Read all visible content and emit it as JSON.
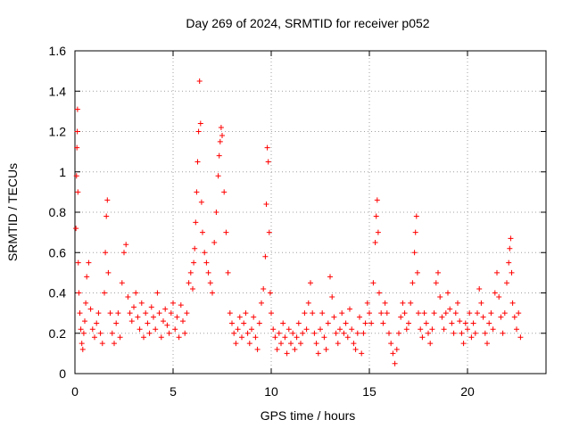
{
  "chart_data": {
    "type": "scatter",
    "title": "Day 269 of 2024, SRMTID for receiver p052",
    "xlabel": "GPS time / hours",
    "ylabel": "SRMTID / TECUs",
    "xlim": [
      0,
      24
    ],
    "ylim": [
      0,
      1.6
    ],
    "xticks": [
      0,
      5,
      10,
      15,
      20
    ],
    "xtick_labels": [
      "0",
      "5",
      "10",
      "15",
      "20"
    ],
    "yticks": [
      0,
      0.2,
      0.4,
      0.6,
      0.8,
      1.0,
      1.2,
      1.4,
      1.6
    ],
    "ytick_labels": [
      "0",
      "0.2",
      "0.4",
      "0.6",
      "0.8",
      "1",
      "1.2",
      "1.4",
      "1.6"
    ],
    "grid": true,
    "marker": "+",
    "color": "#ff0000",
    "series": [
      {
        "name": "SRMTID",
        "points": [
          [
            0.05,
            0.72
          ],
          [
            0.08,
            0.98
          ],
          [
            0.1,
            1.12
          ],
          [
            0.12,
            1.2
          ],
          [
            0.13,
            1.31
          ],
          [
            0.15,
            0.9
          ],
          [
            0.17,
            0.55
          ],
          [
            0.2,
            0.4
          ],
          [
            0.25,
            0.3
          ],
          [
            0.3,
            0.22
          ],
          [
            0.35,
            0.15
          ],
          [
            0.4,
            0.12
          ],
          [
            0.45,
            0.2
          ],
          [
            0.5,
            0.26
          ],
          [
            0.55,
            0.35
          ],
          [
            0.6,
            0.48
          ],
          [
            0.7,
            0.55
          ],
          [
            0.8,
            0.32
          ],
          [
            0.9,
            0.22
          ],
          [
            1.0,
            0.18
          ],
          [
            1.1,
            0.25
          ],
          [
            1.2,
            0.3
          ],
          [
            1.3,
            0.2
          ],
          [
            1.4,
            0.15
          ],
          [
            1.5,
            0.4
          ],
          [
            1.55,
            0.6
          ],
          [
            1.6,
            0.78
          ],
          [
            1.65,
            0.86
          ],
          [
            1.7,
            0.5
          ],
          [
            1.8,
            0.3
          ],
          [
            1.9,
            0.2
          ],
          [
            2.0,
            0.15
          ],
          [
            2.1,
            0.25
          ],
          [
            2.2,
            0.3
          ],
          [
            2.3,
            0.18
          ],
          [
            2.4,
            0.45
          ],
          [
            2.5,
            0.6
          ],
          [
            2.6,
            0.64
          ],
          [
            2.7,
            0.38
          ],
          [
            2.8,
            0.3
          ],
          [
            2.9,
            0.26
          ],
          [
            3.0,
            0.33
          ],
          [
            3.1,
            0.4
          ],
          [
            3.2,
            0.28
          ],
          [
            3.3,
            0.22
          ],
          [
            3.4,
            0.35
          ],
          [
            3.5,
            0.18
          ],
          [
            3.6,
            0.3
          ],
          [
            3.7,
            0.25
          ],
          [
            3.8,
            0.2
          ],
          [
            3.9,
            0.33
          ],
          [
            4.0,
            0.28
          ],
          [
            4.1,
            0.22
          ],
          [
            4.2,
            0.4
          ],
          [
            4.3,
            0.3
          ],
          [
            4.4,
            0.18
          ],
          [
            4.5,
            0.26
          ],
          [
            4.6,
            0.32
          ],
          [
            4.7,
            0.24
          ],
          [
            4.8,
            0.2
          ],
          [
            4.9,
            0.3
          ],
          [
            5.0,
            0.35
          ],
          [
            5.1,
            0.22
          ],
          [
            5.2,
            0.28
          ],
          [
            5.3,
            0.18
          ],
          [
            5.4,
            0.34
          ],
          [
            5.5,
            0.26
          ],
          [
            5.6,
            0.2
          ],
          [
            5.7,
            0.3
          ],
          [
            5.8,
            0.45
          ],
          [
            5.9,
            0.5
          ],
          [
            6.0,
            0.42
          ],
          [
            6.05,
            0.55
          ],
          [
            6.1,
            0.62
          ],
          [
            6.15,
            0.75
          ],
          [
            6.2,
            0.9
          ],
          [
            6.25,
            1.05
          ],
          [
            6.3,
            1.2
          ],
          [
            6.35,
            1.45
          ],
          [
            6.4,
            1.24
          ],
          [
            6.45,
            0.85
          ],
          [
            6.5,
            0.7
          ],
          [
            6.6,
            0.6
          ],
          [
            6.7,
            0.55
          ],
          [
            6.8,
            0.5
          ],
          [
            6.9,
            0.45
          ],
          [
            7.0,
            0.4
          ],
          [
            7.1,
            0.65
          ],
          [
            7.2,
            0.8
          ],
          [
            7.3,
            0.98
          ],
          [
            7.35,
            1.08
          ],
          [
            7.4,
            1.15
          ],
          [
            7.45,
            1.22
          ],
          [
            7.5,
            1.18
          ],
          [
            7.6,
            0.9
          ],
          [
            7.7,
            0.7
          ],
          [
            7.8,
            0.5
          ],
          [
            7.9,
            0.3
          ],
          [
            8.0,
            0.25
          ],
          [
            8.1,
            0.2
          ],
          [
            8.2,
            0.15
          ],
          [
            8.3,
            0.22
          ],
          [
            8.4,
            0.28
          ],
          [
            8.5,
            0.18
          ],
          [
            8.6,
            0.25
          ],
          [
            8.7,
            0.3
          ],
          [
            8.8,
            0.2
          ],
          [
            8.9,
            0.15
          ],
          [
            9.0,
            0.22
          ],
          [
            9.1,
            0.28
          ],
          [
            9.2,
            0.18
          ],
          [
            9.3,
            0.12
          ],
          [
            9.4,
            0.25
          ],
          [
            9.5,
            0.35
          ],
          [
            9.6,
            0.42
          ],
          [
            9.7,
            0.58
          ],
          [
            9.75,
            0.84
          ],
          [
            9.8,
            1.12
          ],
          [
            9.85,
            1.05
          ],
          [
            9.9,
            0.7
          ],
          [
            9.95,
            0.4
          ],
          [
            10.0,
            0.3
          ],
          [
            10.1,
            0.22
          ],
          [
            10.2,
            0.18
          ],
          [
            10.3,
            0.12
          ],
          [
            10.4,
            0.2
          ],
          [
            10.5,
            0.15
          ],
          [
            10.6,
            0.25
          ],
          [
            10.7,
            0.18
          ],
          [
            10.8,
            0.1
          ],
          [
            10.9,
            0.22
          ],
          [
            11.0,
            0.15
          ],
          [
            11.1,
            0.2
          ],
          [
            11.2,
            0.12
          ],
          [
            11.3,
            0.18
          ],
          [
            11.4,
            0.25
          ],
          [
            11.5,
            0.15
          ],
          [
            11.6,
            0.2
          ],
          [
            11.7,
            0.3
          ],
          [
            11.8,
            0.22
          ],
          [
            11.9,
            0.35
          ],
          [
            12.0,
            0.45
          ],
          [
            12.1,
            0.3
          ],
          [
            12.2,
            0.2
          ],
          [
            12.3,
            0.15
          ],
          [
            12.4,
            0.1
          ],
          [
            12.5,
            0.22
          ],
          [
            12.6,
            0.3
          ],
          [
            12.7,
            0.18
          ],
          [
            12.8,
            0.12
          ],
          [
            12.9,
            0.25
          ],
          [
            13.0,
            0.48
          ],
          [
            13.1,
            0.38
          ],
          [
            13.2,
            0.28
          ],
          [
            13.3,
            0.2
          ],
          [
            13.4,
            0.15
          ],
          [
            13.5,
            0.22
          ],
          [
            13.6,
            0.3
          ],
          [
            13.7,
            0.2
          ],
          [
            13.8,
            0.25
          ],
          [
            13.9,
            0.18
          ],
          [
            14.0,
            0.32
          ],
          [
            14.1,
            0.22
          ],
          [
            14.2,
            0.15
          ],
          [
            14.3,
            0.12
          ],
          [
            14.4,
            0.2
          ],
          [
            14.5,
            0.28
          ],
          [
            14.6,
            0.1
          ],
          [
            14.7,
            0.2
          ],
          [
            14.8,
            0.25
          ],
          [
            14.9,
            0.35
          ],
          [
            15.0,
            0.3
          ],
          [
            15.1,
            0.25
          ],
          [
            15.2,
            0.45
          ],
          [
            15.3,
            0.65
          ],
          [
            15.35,
            0.78
          ],
          [
            15.4,
            0.86
          ],
          [
            15.45,
            0.7
          ],
          [
            15.5,
            0.4
          ],
          [
            15.6,
            0.3
          ],
          [
            15.7,
            0.25
          ],
          [
            15.8,
            0.35
          ],
          [
            15.9,
            0.3
          ],
          [
            16.0,
            0.2
          ],
          [
            16.1,
            0.15
          ],
          [
            16.2,
            0.1
          ],
          [
            16.3,
            0.05
          ],
          [
            16.4,
            0.12
          ],
          [
            16.5,
            0.2
          ],
          [
            16.6,
            0.28
          ],
          [
            16.7,
            0.35
          ],
          [
            16.8,
            0.3
          ],
          [
            16.9,
            0.22
          ],
          [
            17.0,
            0.25
          ],
          [
            17.1,
            0.35
          ],
          [
            17.2,
            0.45
          ],
          [
            17.3,
            0.6
          ],
          [
            17.35,
            0.7
          ],
          [
            17.4,
            0.78
          ],
          [
            17.45,
            0.5
          ],
          [
            17.5,
            0.3
          ],
          [
            17.6,
            0.22
          ],
          [
            17.7,
            0.18
          ],
          [
            17.8,
            0.3
          ],
          [
            17.9,
            0.25
          ],
          [
            18.0,
            0.2
          ],
          [
            18.1,
            0.15
          ],
          [
            18.2,
            0.22
          ],
          [
            18.3,
            0.3
          ],
          [
            18.4,
            0.45
          ],
          [
            18.5,
            0.5
          ],
          [
            18.6,
            0.38
          ],
          [
            18.7,
            0.28
          ],
          [
            18.8,
            0.22
          ],
          [
            18.9,
            0.3
          ],
          [
            19.0,
            0.4
          ],
          [
            19.1,
            0.32
          ],
          [
            19.2,
            0.25
          ],
          [
            19.3,
            0.2
          ],
          [
            19.4,
            0.3
          ],
          [
            19.5,
            0.35
          ],
          [
            19.6,
            0.26
          ],
          [
            19.7,
            0.2
          ],
          [
            19.8,
            0.15
          ],
          [
            19.9,
            0.25
          ],
          [
            20.0,
            0.22
          ],
          [
            20.1,
            0.3
          ],
          [
            20.2,
            0.18
          ],
          [
            20.3,
            0.25
          ],
          [
            20.4,
            0.2
          ],
          [
            20.5,
            0.3
          ],
          [
            20.6,
            0.42
          ],
          [
            20.7,
            0.35
          ],
          [
            20.8,
            0.28
          ],
          [
            20.9,
            0.2
          ],
          [
            21.0,
            0.15
          ],
          [
            21.1,
            0.25
          ],
          [
            21.2,
            0.3
          ],
          [
            21.3,
            0.22
          ],
          [
            21.4,
            0.4
          ],
          [
            21.5,
            0.5
          ],
          [
            21.6,
            0.38
          ],
          [
            21.7,
            0.28
          ],
          [
            21.8,
            0.2
          ],
          [
            21.9,
            0.3
          ],
          [
            22.0,
            0.45
          ],
          [
            22.1,
            0.55
          ],
          [
            22.15,
            0.62
          ],
          [
            22.2,
            0.67
          ],
          [
            22.25,
            0.5
          ],
          [
            22.3,
            0.35
          ],
          [
            22.4,
            0.28
          ],
          [
            22.5,
            0.22
          ],
          [
            22.6,
            0.3
          ],
          [
            22.7,
            0.18
          ]
        ]
      }
    ]
  }
}
